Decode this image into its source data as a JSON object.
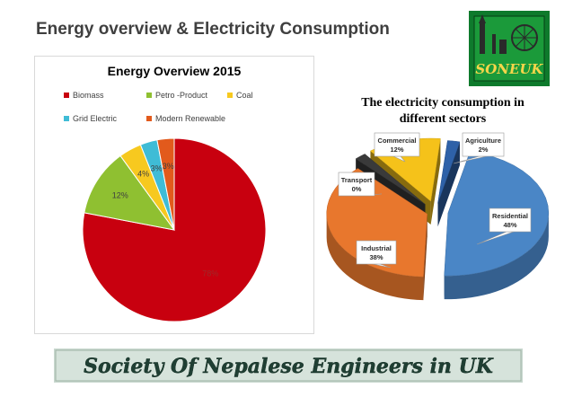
{
  "slide": {
    "title": "Energy overview & Electricity Consumption"
  },
  "logo": {
    "text": "SONEUK"
  },
  "chart1": {
    "title": "Energy Overview 2015",
    "colors": [
      "#c8000f",
      "#8fc031",
      "#f7c91f",
      "#3fbcd6",
      "#e25a1c"
    ]
  },
  "chart2": {
    "title_line1": "The electricity consumption in",
    "title_line2": "different sectors",
    "colors": [
      "#4a86c6",
      "#e8772d",
      "#3a3a3a",
      "#f5c21a",
      "#2e61a8"
    ]
  },
  "banner": {
    "text": "Society Of Nepalese Engineers in UK"
  },
  "chart_data": [
    {
      "type": "pie",
      "title": "Energy Overview 2015",
      "categories": [
        "Biomass",
        "Petro -Product",
        "Coal",
        "Grid Electric",
        "Modern Renewable"
      ],
      "values": [
        78,
        12,
        4,
        3,
        3
      ],
      "labels": [
        "78%",
        "12%",
        "4%",
        "3%",
        "3%"
      ],
      "legend": "top"
    },
    {
      "type": "pie",
      "title": "The electricity consumption in different sectors",
      "categories": [
        "Residential",
        "Industrial",
        "Transport",
        "Commercial",
        "Agriculture"
      ],
      "values": [
        48,
        38,
        0,
        12,
        2
      ],
      "labels": [
        "48%",
        "38%",
        "0%",
        "12%",
        "2%"
      ],
      "style": "3d-exploded"
    }
  ]
}
